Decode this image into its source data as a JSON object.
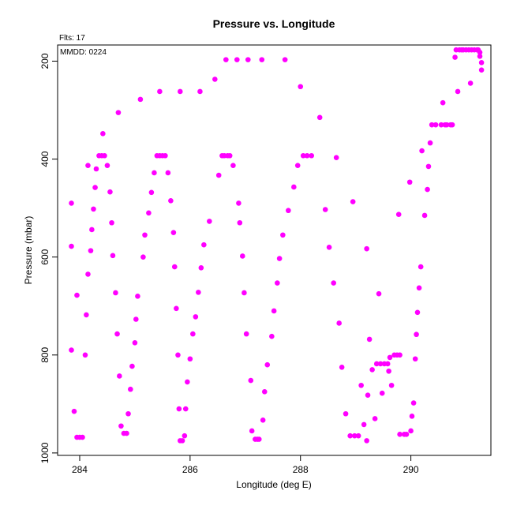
{
  "chart_data": {
    "type": "scatter",
    "title": "Pressure vs. Longitude",
    "xlabel": "Longitude (deg E)",
    "ylabel": "Pressure (mbar)",
    "annotations": [
      "Flts: 17",
      "MMDD: 0224"
    ],
    "xlim": [
      283.6,
      291.45
    ],
    "ylim": [
      1005,
      167
    ],
    "y_reversed": true,
    "x_ticks": [
      284,
      286,
      288,
      290
    ],
    "y_ticks": [
      200,
      400,
      600,
      800,
      1000
    ],
    "grid": false,
    "marker_color": "#ff00ff",
    "points": [
      [
        283.85,
        490
      ],
      [
        283.85,
        578
      ],
      [
        283.85,
        790
      ],
      [
        283.9,
        915
      ],
      [
        283.95,
        678
      ],
      [
        283.95,
        968
      ],
      [
        284.0,
        968
      ],
      [
        284.05,
        968
      ],
      [
        284.1,
        800
      ],
      [
        284.12,
        718
      ],
      [
        284.15,
        635
      ],
      [
        284.15,
        413
      ],
      [
        284.2,
        587
      ],
      [
        284.22,
        544
      ],
      [
        284.25,
        502
      ],
      [
        284.28,
        458
      ],
      [
        284.3,
        420
      ],
      [
        284.35,
        393
      ],
      [
        284.4,
        393
      ],
      [
        284.42,
        348
      ],
      [
        284.45,
        393
      ],
      [
        284.5,
        413
      ],
      [
        284.55,
        467
      ],
      [
        284.58,
        530
      ],
      [
        284.6,
        597
      ],
      [
        284.65,
        673
      ],
      [
        284.68,
        757
      ],
      [
        284.72,
        843
      ],
      [
        284.75,
        945
      ],
      [
        284.8,
        960
      ],
      [
        284.85,
        960
      ],
      [
        284.7,
        305
      ],
      [
        284.88,
        920
      ],
      [
        284.92,
        870
      ],
      [
        284.95,
        823
      ],
      [
        285.0,
        775
      ],
      [
        285.02,
        727
      ],
      [
        285.05,
        680
      ],
      [
        285.1,
        278
      ],
      [
        285.15,
        600
      ],
      [
        285.18,
        555
      ],
      [
        285.25,
        510
      ],
      [
        285.3,
        468
      ],
      [
        285.35,
        428
      ],
      [
        285.4,
        393
      ],
      [
        285.45,
        393
      ],
      [
        285.45,
        262
      ],
      [
        285.5,
        393
      ],
      [
        285.55,
        393
      ],
      [
        285.6,
        428
      ],
      [
        285.65,
        485
      ],
      [
        285.7,
        550
      ],
      [
        285.72,
        620
      ],
      [
        285.75,
        705
      ],
      [
        285.78,
        800
      ],
      [
        285.8,
        910
      ],
      [
        285.82,
        975
      ],
      [
        285.86,
        975
      ],
      [
        285.82,
        262
      ],
      [
        285.9,
        965
      ],
      [
        285.92,
        910
      ],
      [
        285.95,
        855
      ],
      [
        286.0,
        808
      ],
      [
        286.05,
        757
      ],
      [
        286.1,
        722
      ],
      [
        286.15,
        672
      ],
      [
        286.18,
        262
      ],
      [
        286.2,
        622
      ],
      [
        286.25,
        575
      ],
      [
        286.35,
        527
      ],
      [
        286.45,
        237
      ],
      [
        286.52,
        433
      ],
      [
        286.58,
        393
      ],
      [
        286.62,
        393
      ],
      [
        286.65,
        197
      ],
      [
        286.68,
        393
      ],
      [
        286.72,
        393
      ],
      [
        286.78,
        413
      ],
      [
        286.85,
        197
      ],
      [
        286.88,
        490
      ],
      [
        286.9,
        530
      ],
      [
        286.95,
        598
      ],
      [
        286.98,
        673
      ],
      [
        287.02,
        757
      ],
      [
        287.05,
        197
      ],
      [
        287.1,
        852
      ],
      [
        287.12,
        955
      ],
      [
        287.18,
        972
      ],
      [
        287.22,
        972
      ],
      [
        287.25,
        972
      ],
      [
        287.3,
        197
      ],
      [
        287.32,
        933
      ],
      [
        287.35,
        875
      ],
      [
        287.4,
        820
      ],
      [
        287.48,
        762
      ],
      [
        287.52,
        710
      ],
      [
        287.58,
        653
      ],
      [
        287.62,
        603
      ],
      [
        287.68,
        555
      ],
      [
        287.72,
        197
      ],
      [
        287.78,
        505
      ],
      [
        287.88,
        457
      ],
      [
        287.95,
        413
      ],
      [
        288.0,
        252
      ],
      [
        288.05,
        393
      ],
      [
        288.12,
        393
      ],
      [
        288.2,
        393
      ],
      [
        288.35,
        315
      ],
      [
        288.45,
        503
      ],
      [
        288.52,
        580
      ],
      [
        288.6,
        653
      ],
      [
        288.65,
        397
      ],
      [
        288.7,
        735
      ],
      [
        288.75,
        825
      ],
      [
        288.82,
        920
      ],
      [
        288.9,
        965
      ],
      [
        288.95,
        487
      ],
      [
        288.98,
        965
      ],
      [
        289.05,
        965
      ],
      [
        289.1,
        862
      ],
      [
        289.15,
        942
      ],
      [
        289.2,
        975
      ],
      [
        289.2,
        583
      ],
      [
        289.22,
        882
      ],
      [
        289.25,
        768
      ],
      [
        289.3,
        830
      ],
      [
        289.35,
        930
      ],
      [
        289.38,
        818
      ],
      [
        289.42,
        675
      ],
      [
        289.45,
        818
      ],
      [
        289.48,
        878
      ],
      [
        289.52,
        818
      ],
      [
        289.58,
        818
      ],
      [
        289.6,
        833
      ],
      [
        289.62,
        805
      ],
      [
        289.65,
        862
      ],
      [
        289.7,
        800
      ],
      [
        289.75,
        800
      ],
      [
        289.78,
        513
      ],
      [
        289.8,
        962
      ],
      [
        289.8,
        800
      ],
      [
        289.88,
        962
      ],
      [
        289.92,
        962
      ],
      [
        289.98,
        447
      ],
      [
        290.0,
        955
      ],
      [
        290.02,
        925
      ],
      [
        290.05,
        898
      ],
      [
        290.08,
        808
      ],
      [
        290.1,
        758
      ],
      [
        290.12,
        713
      ],
      [
        290.15,
        663
      ],
      [
        290.18,
        620
      ],
      [
        290.2,
        383
      ],
      [
        290.25,
        515
      ],
      [
        290.3,
        462
      ],
      [
        290.32,
        415
      ],
      [
        290.35,
        367
      ],
      [
        290.38,
        330
      ],
      [
        290.45,
        330
      ],
      [
        290.55,
        330
      ],
      [
        290.58,
        285
      ],
      [
        290.62,
        330
      ],
      [
        290.65,
        330
      ],
      [
        290.72,
        330
      ],
      [
        290.75,
        330
      ],
      [
        290.8,
        192
      ],
      [
        290.82,
        177
      ],
      [
        290.85,
        262
      ],
      [
        290.88,
        177
      ],
      [
        290.92,
        177
      ],
      [
        290.95,
        177
      ],
      [
        291.0,
        177
      ],
      [
        291.05,
        177
      ],
      [
        291.08,
        245
      ],
      [
        291.1,
        177
      ],
      [
        291.15,
        177
      ],
      [
        291.2,
        177
      ],
      [
        291.22,
        177
      ],
      [
        291.25,
        182
      ],
      [
        291.25,
        190
      ],
      [
        291.28,
        203
      ],
      [
        291.28,
        218
      ]
    ]
  }
}
